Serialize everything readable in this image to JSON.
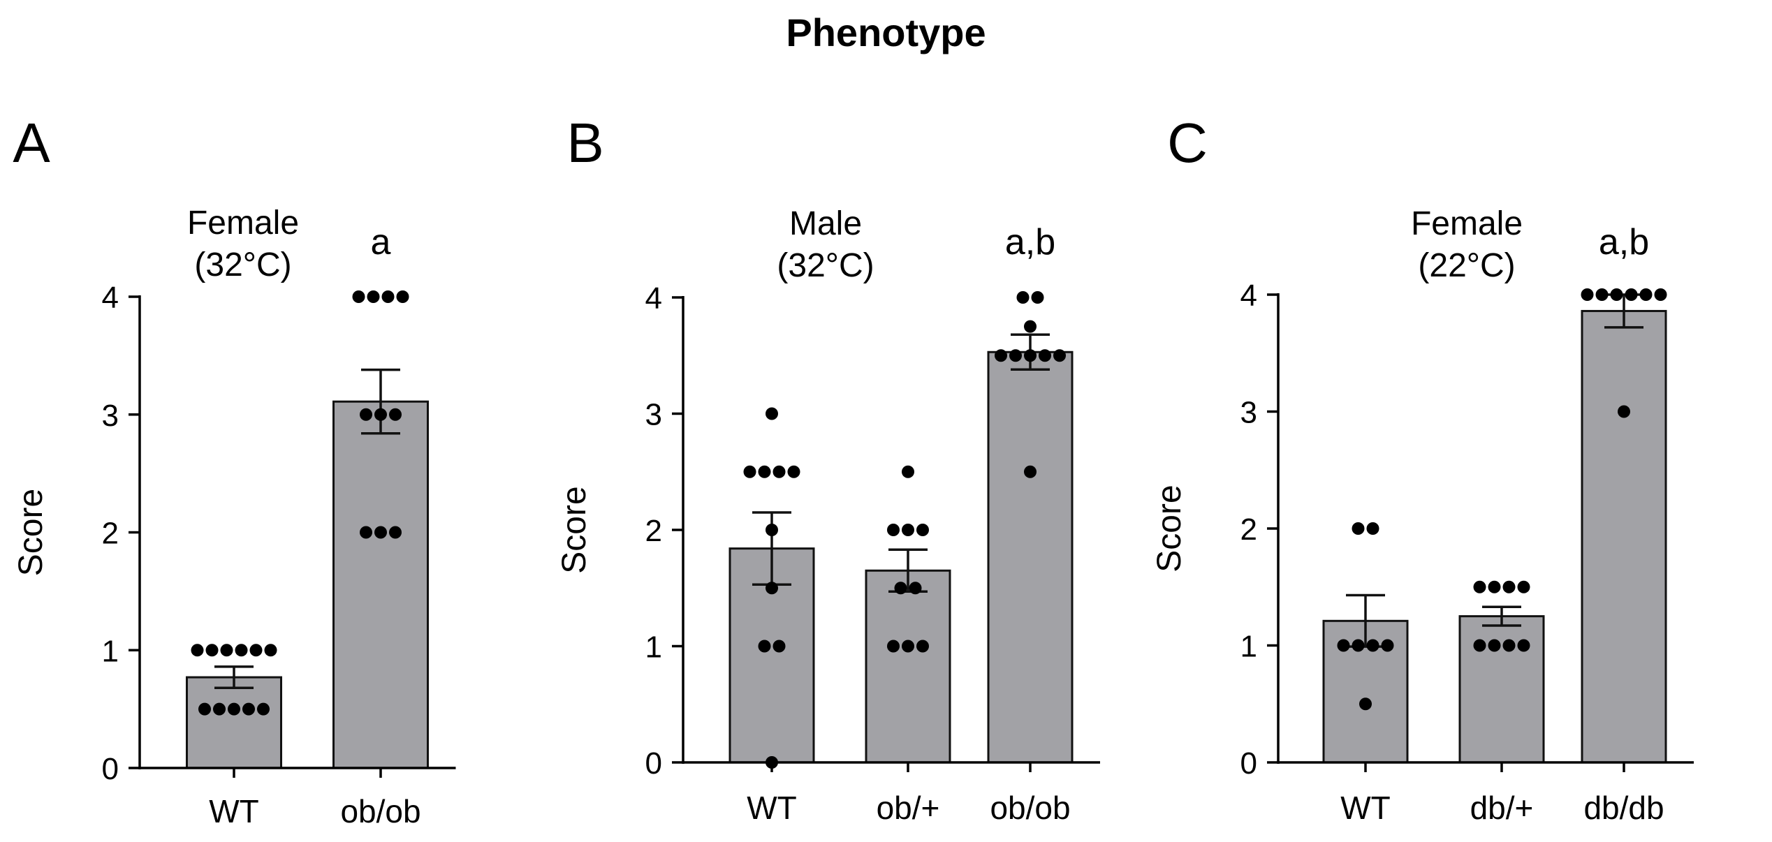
{
  "figure_title": "Phenotype",
  "colors": {
    "bar_fill": "#a2a2a6",
    "bar_stroke": "#111111",
    "dot": "#000000",
    "axis": "#000000"
  },
  "chart_data": [
    {
      "type": "bar",
      "panel": "A",
      "annotation": "Female\n(32°C)",
      "ylabel": "Score",
      "ylim": [
        0,
        4
      ],
      "yticks": [
        "0",
        "1",
        "2",
        "3",
        "4"
      ],
      "categories": [
        "WT",
        "ob/ob"
      ],
      "values": [
        0.77,
        3.11
      ],
      "sem": [
        0.09,
        0.27
      ],
      "significance": [
        "",
        "a"
      ],
      "points": [
        [
          1,
          1,
          1,
          1,
          1,
          1,
          0.5,
          0.5,
          0.5,
          0.5,
          0.5
        ],
        [
          4,
          4,
          4,
          4,
          3,
          3,
          3,
          2,
          2,
          2
        ]
      ]
    },
    {
      "type": "bar",
      "panel": "B",
      "annotation": "Male\n(32°C)",
      "ylabel": "Score",
      "ylim": [
        0,
        4
      ],
      "yticks": [
        "0",
        "1",
        "2",
        "3",
        "4"
      ],
      "categories": [
        "WT",
        "ob/+",
        "ob/ob"
      ],
      "values": [
        1.84,
        1.65,
        3.53
      ],
      "sem": [
        0.31,
        0.18,
        0.15
      ],
      "significance": [
        "",
        "",
        "a,b"
      ],
      "points": [
        [
          3,
          2.5,
          2.5,
          2.5,
          2.5,
          2,
          1.5,
          1,
          1,
          0
        ],
        [
          2.5,
          2,
          2,
          2,
          1.5,
          1.5,
          1,
          1,
          1
        ],
        [
          4,
          4,
          3.75,
          3.5,
          3.5,
          3.5,
          3.5,
          3.5,
          2.5
        ]
      ]
    },
    {
      "type": "bar",
      "panel": "C",
      "annotation": "Female\n(22°C)",
      "ylabel": "Score",
      "ylim": [
        0,
        4
      ],
      "yticks": [
        "0",
        "1",
        "2",
        "3",
        "4"
      ],
      "categories": [
        "WT",
        "db/+",
        "db/db"
      ],
      "values": [
        1.21,
        1.25,
        3.86
      ],
      "sem": [
        0.22,
        0.08,
        0.14
      ],
      "significance": [
        "",
        "",
        "a,b"
      ],
      "points": [
        [
          2,
          2,
          1,
          1,
          1,
          1,
          0.5
        ],
        [
          1.5,
          1.5,
          1.5,
          1.5,
          1,
          1,
          1,
          1
        ],
        [
          4,
          4,
          4,
          4,
          4,
          4,
          3
        ]
      ]
    }
  ]
}
